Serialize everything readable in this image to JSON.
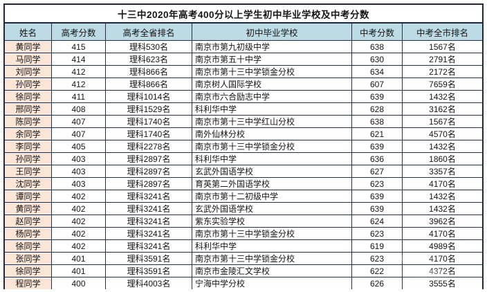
{
  "title": "十三中2020年高考400分以上学生初中毕业学校及中考分数",
  "colors": {
    "header_bg": "#bcdbe4",
    "name_column_bg": "#fbe5d7",
    "border": "#1e2836"
  },
  "table": {
    "headers": [
      "姓名",
      "高考分数",
      "高考全省排名",
      "初中毕业学校",
      "中考分数",
      "中考全市排名"
    ],
    "rows": [
      {
        "name": "黄同学",
        "gk_score": "415",
        "gk_rank": "理科530名",
        "school": "南京市第九初级中学",
        "zk_score": "638",
        "zk_rank": "1567名"
      },
      {
        "name": "马同学",
        "gk_score": "414",
        "gk_rank": "理科623名",
        "school": "南京市第五十中学",
        "zk_score": "630",
        "zk_rank": "2791名"
      },
      {
        "name": "刘同学",
        "gk_score": "412",
        "gk_rank": "理科866名",
        "school": "南京市第十三中学锁金分校",
        "zk_score": "634",
        "zk_rank": "2172名"
      },
      {
        "name": "孙同学",
        "gk_score": "412",
        "gk_rank": "理科866名",
        "school": "南京树人国际学校",
        "zk_score": "607",
        "zk_rank": "7659名"
      },
      {
        "name": "徐同学",
        "gk_score": "411",
        "gk_rank": "理科1014名",
        "school": "南京市六合励志中学",
        "zk_score": "639",
        "zk_rank": "1432名"
      },
      {
        "name": "邢同学",
        "gk_score": "408",
        "gk_rank": "理科1529名",
        "school": "科利华中学",
        "zk_score": "628",
        "zk_rank": "3162名"
      },
      {
        "name": "陈同学",
        "gk_score": "407",
        "gk_rank": "理科1740名",
        "school": "南京市第十三中学红山分校",
        "zk_score": "638",
        "zk_rank": "1567名"
      },
      {
        "name": "余同学",
        "gk_score": "407",
        "gk_rank": "理科1740名",
        "school": "南外仙林分校",
        "zk_score": "621",
        "zk_rank": "4570名"
      },
      {
        "name": "李同学",
        "gk_score": "405",
        "gk_rank": "理科2278名",
        "school": "南京市第十三中学锁金分校",
        "zk_score": "639",
        "zk_rank": "1432名"
      },
      {
        "name": "孙同学",
        "gk_score": "403",
        "gk_rank": "理科2897名",
        "school": "科利华中学",
        "zk_score": "636",
        "zk_rank": "1860名"
      },
      {
        "name": "王同学",
        "gk_score": "403",
        "gk_rank": "理科2897名",
        "school": "玄武外国语学校",
        "zk_score": "627",
        "zk_rank": "3357名"
      },
      {
        "name": "沈同学",
        "gk_score": "403",
        "gk_rank": "理科2897名",
        "school": "育英第二外国语学校",
        "zk_score": "623",
        "zk_rank": "4170名"
      },
      {
        "name": "谭同学",
        "gk_score": "402",
        "gk_rank": "理科3241名",
        "school": "南京市第十二初级中学",
        "zk_score": "639",
        "zk_rank": "1432名"
      },
      {
        "name": "黄同学",
        "gk_score": "402",
        "gk_rank": "理科3241名",
        "school": "玄武外国语学校",
        "zk_score": "639",
        "zk_rank": "1432名"
      },
      {
        "name": "赵同学",
        "gk_score": "402",
        "gk_rank": "理科3241名",
        "school": "紫东实验学校",
        "zk_score": "624",
        "zk_rank": "3962名"
      },
      {
        "name": "杨同学",
        "gk_score": "402",
        "gk_rank": "理科3241名",
        "school": "南京市第十三中学锁金分校",
        "zk_score": "623",
        "zk_rank": "4170名"
      },
      {
        "name": "徐同学",
        "gk_score": "402",
        "gk_rank": "理科3241名",
        "school": "科利华中学",
        "zk_score": "619",
        "zk_rank": "4989名"
      },
      {
        "name": "张同学",
        "gk_score": "401",
        "gk_rank": "理科3591名",
        "school": "南京市第十三中学锁金分校",
        "zk_score": "623",
        "zk_rank": "4170名"
      },
      {
        "name": "徐同学",
        "gk_score": "401",
        "gk_rank": "理科3591名",
        "school": "南京市金陵汇文学校",
        "zk_score": "622",
        "zk_rank": "4372名"
      },
      {
        "name": "程同学",
        "gk_score": "400",
        "gk_rank": "理科4003名",
        "school": "宁海中学分校",
        "zk_score": "626",
        "zk_rank": "3555名"
      }
    ]
  }
}
